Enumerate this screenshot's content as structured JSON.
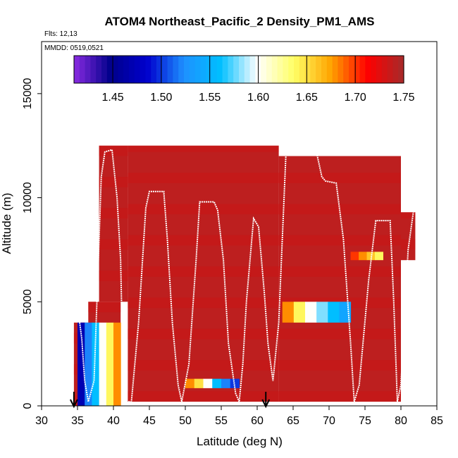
{
  "chart_data": {
    "type": "heatmap",
    "title": "ATOM4 Northeast_Pacific_2 Density_PM1_AMS",
    "flights_label": "Flts: 12,13",
    "dates_label": "MMDD: 0519,0521",
    "xlabel": "Latitude (deg N)",
    "ylabel": "Altitude (m)",
    "xlim": [
      30,
      85
    ],
    "ylim": [
      0,
      17500
    ],
    "x_ticks": [
      30,
      35,
      40,
      45,
      50,
      55,
      60,
      65,
      70,
      75,
      80,
      85
    ],
    "y_ticks": [
      0,
      5000,
      10000,
      15000
    ],
    "colorbar": {
      "min": 1.41,
      "max": 1.75,
      "ticks": [
        1.45,
        1.5,
        1.55,
        1.6,
        1.65,
        1.7,
        1.75
      ],
      "colors": [
        "#8a2be2",
        "#00008b",
        "#0000cd",
        "#1e90ff",
        "#00bfff",
        "#ffffff",
        "#ffff66",
        "#ffa500",
        "#ff0000",
        "#a52a2a"
      ]
    },
    "background_value": 1.74,
    "columns": [
      {
        "x0": 34.5,
        "x1": 36.5,
        "y0": 0,
        "y1": 4000
      },
      {
        "x0": 36.5,
        "x1": 41,
        "y0": 0,
        "y1": 5000
      },
      {
        "x0": 38,
        "x1": 42,
        "y0": 5000,
        "y1": 12500
      },
      {
        "x0": 42,
        "x1": 63,
        "y0": 200,
        "y1": 12500
      },
      {
        "x0": 63,
        "x1": 80,
        "y0": 200,
        "y1": 12000
      },
      {
        "x0": 80,
        "x1": 82,
        "y0": 7000,
        "y1": 9300
      }
    ],
    "anomalies": [
      {
        "x0": 35,
        "x1": 41,
        "y0": 0,
        "y1": 4000,
        "values": [
          1.47,
          1.52,
          1.56,
          1.6,
          1.64,
          1.68
        ]
      },
      {
        "x0": 50,
        "x1": 57.5,
        "y0": 850,
        "y1": 1300,
        "values": [
          1.68,
          1.65,
          1.6,
          1.56,
          1.52,
          1.5
        ]
      },
      {
        "x0": 63.5,
        "x1": 73,
        "y0": 4000,
        "y1": 5000,
        "values": [
          1.68,
          1.64,
          1.6,
          1.58,
          1.56,
          1.54
        ]
      },
      {
        "x0": 73,
        "x1": 77.5,
        "y0": 7000,
        "y1": 7400,
        "values": [
          1.7,
          1.68,
          1.66,
          1.64
        ]
      }
    ],
    "flight_track": [
      [
        34.8,
        4900
      ],
      [
        35.2,
        4300
      ],
      [
        35.6,
        3200
      ],
      [
        36.0,
        1200
      ],
      [
        36.5,
        200
      ],
      [
        37.3,
        1200
      ],
      [
        37.8,
        6000
      ],
      [
        38.3,
        11000
      ],
      [
        38.8,
        12200
      ],
      [
        39.8,
        12300
      ],
      [
        40.5,
        10000
      ],
      [
        41.0,
        7000
      ],
      [
        41.3,
        2000
      ],
      [
        41.6,
        200
      ],
      [
        42.5,
        200
      ],
      [
        43.5,
        4000
      ],
      [
        44.5,
        9500
      ],
      [
        45.0,
        10300
      ],
      [
        47.0,
        10300
      ],
      [
        47.5,
        8000
      ],
      [
        48.2,
        4000
      ],
      [
        49.0,
        1000
      ],
      [
        49.5,
        200
      ],
      [
        50.5,
        2000
      ],
      [
        51.5,
        7000
      ],
      [
        52.0,
        9800
      ],
      [
        54.0,
        9800
      ],
      [
        54.5,
        9400
      ],
      [
        55.3,
        7000
      ],
      [
        56.0,
        3000
      ],
      [
        57.0,
        600
      ],
      [
        57.5,
        200
      ],
      [
        58.0,
        2000
      ],
      [
        58.5,
        5000
      ],
      [
        59.5,
        9000
      ],
      [
        60.2,
        8600
      ],
      [
        61.0,
        5400
      ],
      [
        61.5,
        3000
      ],
      [
        62.2,
        1200
      ],
      [
        63.0,
        4000
      ],
      [
        64.0,
        12100
      ],
      [
        68.3,
        12100
      ],
      [
        69.0,
        11000
      ],
      [
        69.5,
        10800
      ],
      [
        71.0,
        10700
      ],
      [
        72.0,
        8000
      ],
      [
        73.0,
        3000
      ],
      [
        73.5,
        200
      ],
      [
        74.2,
        1000
      ],
      [
        75.5,
        6000
      ],
      [
        76.5,
        8900
      ],
      [
        78.5,
        8900
      ],
      [
        79.0,
        5000
      ],
      [
        79.5,
        200
      ],
      [
        80.0,
        1000
      ],
      [
        81.0,
        7500
      ],
      [
        81.8,
        9500
      ]
    ],
    "arrows": [
      34.5,
      61.2
    ]
  }
}
